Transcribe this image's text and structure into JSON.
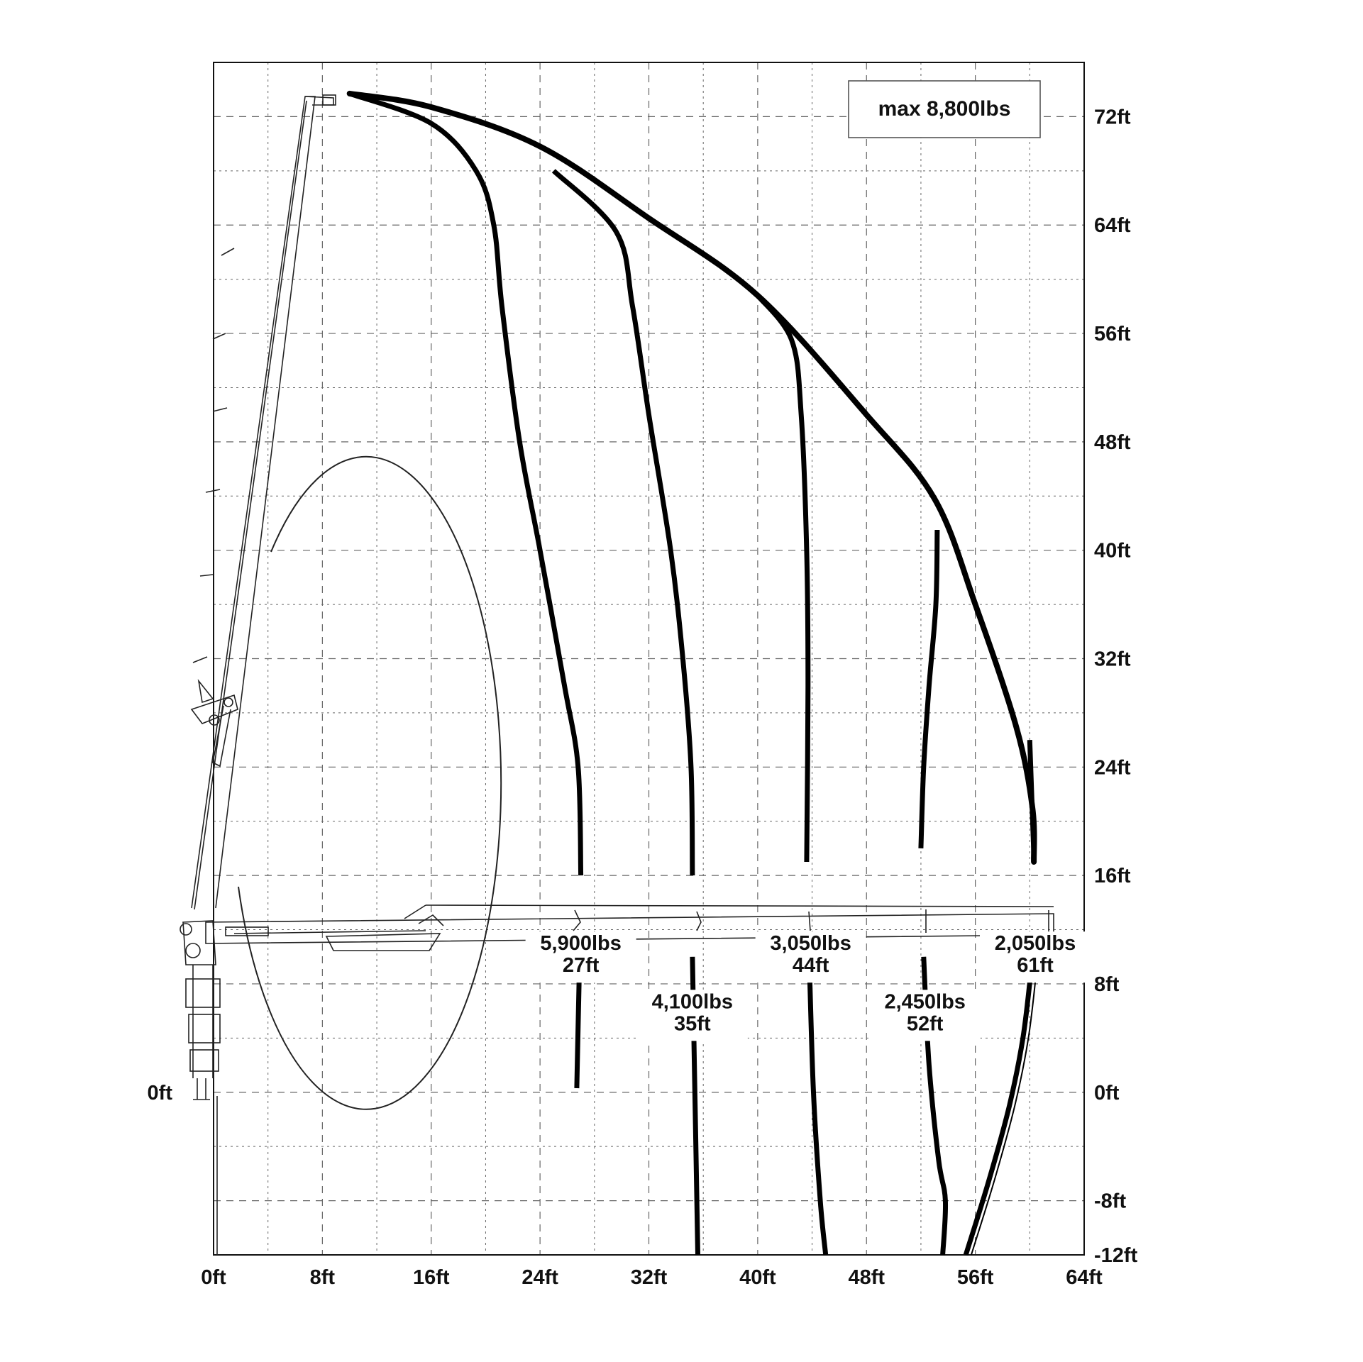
{
  "chart_data": {
    "type": "line",
    "title": "",
    "annotation": "max 8,800lbs",
    "xlabel": "",
    "ylabel": "",
    "x_unit": "ft",
    "y_unit": "ft",
    "xlim": [
      0,
      64
    ],
    "ylim": [
      -12,
      76
    ],
    "x_ticks": [
      {
        "value": 0,
        "label": "0ft"
      },
      {
        "value": 8,
        "label": "8ft"
      },
      {
        "value": 16,
        "label": "16ft"
      },
      {
        "value": 24,
        "label": "24ft"
      },
      {
        "value": 32,
        "label": "32ft"
      },
      {
        "value": 40,
        "label": "40ft"
      },
      {
        "value": 48,
        "label": "48ft"
      },
      {
        "value": 56,
        "label": "56ft"
      },
      {
        "value": 64,
        "label": "64ft"
      }
    ],
    "y_ticks_right": [
      {
        "value": 72,
        "label": "72ft"
      },
      {
        "value": 64,
        "label": "64ft"
      },
      {
        "value": 56,
        "label": "56ft"
      },
      {
        "value": 48,
        "label": "48ft"
      },
      {
        "value": 40,
        "label": "40ft"
      },
      {
        "value": 32,
        "label": "32ft"
      },
      {
        "value": 24,
        "label": "24ft"
      },
      {
        "value": 16,
        "label": "16ft"
      },
      {
        "value": 8,
        "label": "8ft"
      },
      {
        "value": 0,
        "label": "0ft"
      },
      {
        "value": -8,
        "label": "-8ft"
      },
      {
        "value": -12,
        "label": "-12ft"
      }
    ],
    "y_ticks_left": [
      {
        "value": 0,
        "label": "0ft"
      }
    ],
    "grid": true,
    "envelope": {
      "name": "outer reach",
      "points": [
        [
          10,
          73.7
        ],
        [
          16,
          72.7
        ],
        [
          24,
          69.8
        ],
        [
          32,
          64.5
        ],
        [
          40,
          58.8
        ],
        [
          48,
          50
        ],
        [
          53,
          43.8
        ],
        [
          56,
          36
        ],
        [
          59,
          27
        ],
        [
          60.2,
          21
        ],
        [
          60.3,
          17
        ]
      ]
    },
    "series": [
      {
        "name": "5,900lbs 27ft",
        "load": "5,900lbs",
        "reach": "27ft",
        "points_upper": [
          [
            10,
            73.7
          ],
          [
            16,
            71.5
          ],
          [
            19.3,
            68
          ],
          [
            20.6,
            64
          ],
          [
            21.2,
            58
          ],
          [
            22.5,
            48
          ],
          [
            24,
            40
          ],
          [
            25.8,
            30
          ],
          [
            26.8,
            24
          ],
          [
            27,
            16
          ]
        ],
        "points_lower": [
          [
            26.9,
            9.5
          ],
          [
            26.7,
            0.3
          ]
        ]
      },
      {
        "name": "4,100lbs 35ft",
        "load": "4,100lbs",
        "reach": "35ft",
        "points_upper": [
          [
            25,
            68
          ],
          [
            29.6,
            63.5
          ],
          [
            30.8,
            58
          ],
          [
            32,
            50
          ],
          [
            33.6,
            40
          ],
          [
            34.5,
            32
          ],
          [
            35.1,
            24
          ],
          [
            35.2,
            16
          ]
        ],
        "points_lower": [
          [
            35.2,
            10
          ],
          [
            35.4,
            -1
          ],
          [
            35.6,
            -12
          ]
        ]
      },
      {
        "name": "3,050lbs 44ft",
        "load": "3,050lbs",
        "reach": "44ft",
        "points_upper": [
          [
            40,
            58.8
          ],
          [
            42.5,
            55.5
          ],
          [
            43.2,
            50
          ],
          [
            43.6,
            40
          ],
          [
            43.7,
            30
          ],
          [
            43.6,
            17
          ]
        ],
        "points_lower": [
          [
            43.8,
            9.5
          ],
          [
            44.1,
            0
          ],
          [
            44.6,
            -8
          ],
          [
            45,
            -12
          ]
        ]
      },
      {
        "name": "2,450lbs 52ft",
        "load": "2,450lbs",
        "reach": "52ft",
        "points_upper": [
          [
            53.2,
            41.5
          ],
          [
            53.1,
            36
          ],
          [
            52.6,
            30
          ],
          [
            52.2,
            24
          ],
          [
            52.0,
            18
          ]
        ],
        "points_lower": [
          [
            52.2,
            10
          ],
          [
            52.6,
            2
          ],
          [
            53.3,
            -5
          ],
          [
            53.8,
            -8
          ],
          [
            53.6,
            -12
          ]
        ]
      },
      {
        "name": "2,050lbs 61ft",
        "load": "2,050lbs",
        "reach": "61ft",
        "points_upper": [
          [
            60,
            26
          ],
          [
            60.3,
            17.5
          ]
        ],
        "points_lower": [
          [
            60.1,
            9
          ],
          [
            59.5,
            4
          ],
          [
            58.5,
            -1
          ],
          [
            57,
            -6.5
          ],
          [
            55.3,
            -12
          ]
        ]
      }
    ],
    "load_labels": [
      {
        "load": "5,900lbs",
        "reach": "27ft",
        "x": 27,
        "y": 10.5
      },
      {
        "load": "4,100lbs",
        "reach": "35ft",
        "x": 35.2,
        "y": 6.2
      },
      {
        "load": "3,050lbs",
        "reach": "44ft",
        "x": 43.9,
        "y": 10.5
      },
      {
        "load": "2,450lbs",
        "reach": "52ft",
        "x": 52.3,
        "y": 6.2
      },
      {
        "load": "2,050lbs",
        "reach": "61ft",
        "x": 60.4,
        "y": 10.5
      }
    ]
  }
}
